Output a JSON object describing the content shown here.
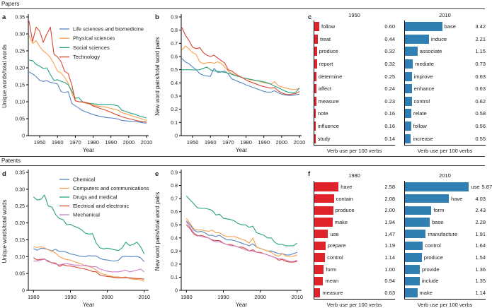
{
  "sections": {
    "papers": {
      "label": "Papers"
    },
    "patents": {
      "label": "Patents"
    }
  },
  "panel_letters": {
    "a": "a",
    "b": "b",
    "c": "c",
    "d": "d",
    "e": "e",
    "f": "f"
  },
  "chart_data": [
    {
      "id": "a",
      "row": "top",
      "type": "line",
      "panel": "a",
      "section": "Papers",
      "xlabel": "Year",
      "ylabel": "Unique words/total words",
      "xlim": [
        1943.6,
        2011.2
      ],
      "ylim": [
        0,
        0.35
      ],
      "xticks": [
        1950,
        1960,
        1970,
        1980,
        1990,
        2000,
        2010
      ],
      "yticks": [
        "0",
        "0.05",
        "0.10",
        "0.15",
        "0.20",
        "0.25",
        "0.30",
        "0.35"
      ],
      "legend": true,
      "grid": false,
      "x_start": 1944,
      "x_step": 2,
      "series": [
        {
          "name": "Life sciences and biomedicine",
          "color": "#5585c2",
          "values": [
            0.188,
            0.182,
            0.174,
            0.163,
            0.16,
            0.162,
            0.157,
            0.155,
            0.152,
            0.13,
            0.127,
            0.13,
            0.095,
            0.088,
            0.081,
            0.074,
            0.07,
            0.066,
            0.062,
            0.059,
            0.057,
            0.055,
            0.053,
            0.052,
            0.051,
            0.049,
            0.045,
            0.044,
            0.043,
            0.042,
            0.041,
            0.04,
            0.038,
            0.037
          ]
        },
        {
          "name": "Physical sciences",
          "color": "#f6a04d",
          "values": [
            0.295,
            0.272,
            0.28,
            0.262,
            0.25,
            0.242,
            0.23,
            0.212,
            0.19,
            0.185,
            0.172,
            0.155,
            0.125,
            0.103,
            0.1,
            0.098,
            0.095,
            0.093,
            0.09,
            0.088,
            0.086,
            0.085,
            0.083,
            0.08,
            0.078,
            0.075,
            0.068,
            0.065,
            0.062,
            0.058,
            0.055,
            0.052,
            0.048,
            0.045
          ]
        },
        {
          "name": "Social sciences",
          "color": "#27a383",
          "values": [
            0.223,
            0.221,
            0.21,
            0.205,
            0.198,
            0.2,
            0.18,
            0.163,
            0.165,
            0.16,
            0.157,
            0.15,
            0.132,
            0.11,
            0.112,
            0.1,
            0.097,
            0.095,
            0.094,
            0.093,
            0.092,
            0.092,
            0.092,
            0.092,
            0.09,
            0.088,
            0.075,
            0.072,
            0.068,
            0.065,
            0.062,
            0.058,
            0.055,
            0.052
          ]
        },
        {
          "name": "Technology",
          "color": "#d8452f",
          "values": [
            0.338,
            0.278,
            0.32,
            0.308,
            0.275,
            0.3,
            0.32,
            0.24,
            0.232,
            0.218,
            0.19,
            0.183,
            0.15,
            0.103,
            0.1,
            0.1,
            0.098,
            0.095,
            0.087,
            0.084,
            0.08,
            0.077,
            0.073,
            0.069,
            0.064,
            0.06,
            0.056,
            0.053,
            0.05,
            0.048,
            0.045,
            0.043,
            0.041,
            0.04
          ]
        }
      ]
    },
    {
      "id": "b",
      "row": "top",
      "type": "line",
      "panel": "b",
      "section": "Papers",
      "xlabel": "Year",
      "ylabel": "New word pairs/total word pairs",
      "xlim": [
        1943.6,
        2011.2
      ],
      "ylim": [
        0,
        0.9
      ],
      "xticks": [
        1950,
        1960,
        1970,
        1980,
        1990,
        2000,
        2010
      ],
      "yticks": [
        "0",
        "0.1",
        "0.2",
        "0.3",
        "0.4",
        "0.5",
        "0.6",
        "0.7",
        "0.8",
        "0.9"
      ],
      "legend": false,
      "grid": false,
      "x_start": 1944,
      "x_step": 2,
      "series": [
        {
          "name": "Life sciences and biomedicine",
          "color": "#5585c2",
          "values": [
            0.585,
            0.558,
            0.545,
            0.52,
            0.5,
            0.47,
            0.458,
            0.452,
            0.45,
            0.51,
            0.48,
            0.482,
            0.49,
            0.468,
            0.43,
            0.42,
            0.408,
            0.398,
            0.385,
            0.375,
            0.365,
            0.355,
            0.345,
            0.336,
            0.33,
            0.33,
            0.34,
            0.325,
            0.315,
            0.308,
            0.305,
            0.305,
            0.31,
            0.315
          ]
        },
        {
          "name": "Physical sciences",
          "color": "#f6a04d",
          "values": [
            0.65,
            0.68,
            0.658,
            0.63,
            0.615,
            0.56,
            0.545,
            0.552,
            0.555,
            0.548,
            0.56,
            0.548,
            0.52,
            0.49,
            0.47,
            0.46,
            0.45,
            0.44,
            0.432,
            0.425,
            0.42,
            0.415,
            0.41,
            0.402,
            0.396,
            0.39,
            0.41,
            0.38,
            0.37,
            0.362,
            0.355,
            0.35,
            0.35,
            0.36
          ]
        },
        {
          "name": "Social sciences",
          "color": "#27a383",
          "values": [
            0.5,
            0.5,
            0.5,
            0.499,
            0.498,
            0.5,
            0.51,
            0.52,
            0.5,
            0.49,
            0.488,
            0.484,
            0.48,
            0.474,
            0.465,
            0.455,
            0.448,
            0.44,
            0.434,
            0.428,
            0.423,
            0.418,
            0.413,
            0.408,
            0.4,
            0.39,
            0.375,
            0.365,
            0.35,
            0.338,
            0.328,
            0.323,
            0.33,
            0.36
          ]
        },
        {
          "name": "Technology",
          "color": "#d8452f",
          "values": [
            0.82,
            0.76,
            0.72,
            0.67,
            0.66,
            0.668,
            0.63,
            0.61,
            0.6,
            0.61,
            0.59,
            0.57,
            0.55,
            0.5,
            0.49,
            0.47,
            0.452,
            0.44,
            0.422,
            0.41,
            0.4,
            0.39,
            0.38,
            0.372,
            0.366,
            0.36,
            0.365,
            0.34,
            0.325,
            0.315,
            0.31,
            0.315,
            0.32,
            0.335
          ]
        }
      ]
    },
    {
      "id": "c1950",
      "row": "top",
      "type": "bar",
      "panel": "c",
      "section": "Papers",
      "title": "1950",
      "xlabel": "Verb use per 100 verbs",
      "color": "#e0222a",
      "xmax": 9.8,
      "categories": [
        "follow",
        "treat",
        "produce",
        "report",
        "determine",
        "affect",
        "measure",
        "note",
        "influence",
        "study"
      ],
      "values": [
        "0.60",
        "0.44",
        "0.32",
        "0.32",
        "0.25",
        "0.24",
        "0.23",
        "0.16",
        "0.16",
        "0.14"
      ]
    },
    {
      "id": "c2010",
      "row": "top",
      "type": "bar",
      "panel": "c",
      "section": "Papers",
      "title": "2010",
      "xlabel": "Verb use per 100 verbs",
      "color": "#2f7fb2",
      "xmax": 7.4,
      "categories": [
        "base",
        "induce",
        "associate",
        "mediate",
        "improve",
        "enhance",
        "control",
        "relate",
        "follow",
        "increase"
      ],
      "values": [
        "3.42",
        "2.21",
        "1.15",
        "0.73",
        "0.63",
        "0.63",
        "0.62",
        "0.58",
        "0.56",
        "0.55"
      ]
    },
    {
      "id": "d",
      "row": "bot",
      "type": "line",
      "panel": "d",
      "section": "Patents",
      "xlabel": "Year",
      "ylabel": "Unique words/total words",
      "xlim": [
        1978.6,
        2011.2
      ],
      "ylim": [
        0,
        0.35
      ],
      "xticks": [
        1980,
        1990,
        2000,
        2010
      ],
      "yticks": [
        "0",
        "0.05",
        "0.10",
        "0.15",
        "0.20",
        "0.25",
        "0.30",
        "0.35"
      ],
      "legend": true,
      "grid": false,
      "x_start": 1980,
      "x_step": 1,
      "series": [
        {
          "name": "Chemical",
          "color": "#5585c2",
          "values": [
            0.124,
            0.119,
            0.125,
            0.124,
            0.121,
            0.117,
            0.122,
            0.115,
            0.116,
            0.113,
            0.108,
            0.106,
            0.103,
            0.101,
            0.1,
            0.103,
            0.102,
            0.102,
            0.095,
            0.091,
            0.09,
            0.088,
            0.087,
            0.089,
            0.1,
            0.101,
            0.1,
            0.1,
            0.101,
            0.097,
            0.085
          ]
        },
        {
          "name": "Computers and communications",
          "color": "#f6a04d",
          "values": [
            0.13,
            0.127,
            0.13,
            0.126,
            0.12,
            0.116,
            0.11,
            0.1,
            0.095,
            0.091,
            0.09,
            0.085,
            0.082,
            0.078,
            0.073,
            0.071,
            0.067,
            0.06,
            0.052,
            0.048,
            0.045,
            0.042,
            0.04,
            0.04,
            0.038,
            0.04,
            0.035,
            0.033,
            0.033,
            0.031,
            0.027
          ]
        },
        {
          "name": "Drugs and medical",
          "color": "#27a383",
          "values": [
            0.277,
            0.268,
            0.27,
            0.283,
            0.25,
            0.247,
            0.225,
            0.213,
            0.21,
            0.195,
            0.196,
            0.19,
            0.186,
            0.18,
            0.17,
            0.167,
            0.168,
            0.14,
            0.126,
            0.123,
            0.125,
            0.123,
            0.12,
            0.118,
            0.126,
            0.143,
            0.133,
            0.136,
            0.143,
            0.13,
            0.108
          ]
        },
        {
          "name": "Electrical and electronic",
          "color": "#d8452f",
          "values": [
            0.097,
            0.09,
            0.092,
            0.093,
            0.085,
            0.082,
            0.081,
            0.071,
            0.076,
            0.073,
            0.072,
            0.07,
            0.068,
            0.065,
            0.063,
            0.06,
            0.056,
            0.055,
            0.045,
            0.043,
            0.041,
            0.04,
            0.038,
            0.037,
            0.037,
            0.038,
            0.037,
            0.036,
            0.035,
            0.035,
            0.033
          ]
        },
        {
          "name": "Mechanical",
          "color": "#cc7fc6",
          "values": [
            0.087,
            0.087,
            0.09,
            0.092,
            0.088,
            0.081,
            0.078,
            0.075,
            0.078,
            0.08,
            0.077,
            0.075,
            0.075,
            0.072,
            0.075,
            0.072,
            0.07,
            0.07,
            0.063,
            0.06,
            0.057,
            0.055,
            0.055,
            0.055,
            0.057,
            0.06,
            0.055,
            0.057,
            0.06,
            0.063,
            0.055
          ]
        }
      ]
    },
    {
      "id": "e",
      "row": "bot",
      "type": "line",
      "panel": "e",
      "section": "Patents",
      "xlabel": "Year",
      "ylabel": "New word pairs/total word pairs",
      "xlim": [
        1978.6,
        2011.2
      ],
      "ylim": [
        0,
        0.9
      ],
      "xticks": [
        1980,
        1990,
        2000,
        2010
      ],
      "yticks": [
        "0",
        "0.1",
        "0.2",
        "0.3",
        "0.4",
        "0.5",
        "0.6",
        "0.7",
        "0.8",
        "0.9"
      ],
      "legend": false,
      "grid": false,
      "x_start": 1980,
      "x_step": 1,
      "series": [
        {
          "name": "Chemical",
          "color": "#5585c2",
          "values": [
            0.53,
            0.5,
            0.46,
            0.445,
            0.45,
            0.44,
            0.42,
            0.42,
            0.41,
            0.42,
            0.4,
            0.385,
            0.385,
            0.38,
            0.37,
            0.36,
            0.35,
            0.34,
            0.355,
            0.33,
            0.32,
            0.31,
            0.3,
            0.3,
            0.29,
            0.28,
            0.28,
            0.27,
            0.27,
            0.28,
            0.29
          ]
        },
        {
          "name": "Computers and communications",
          "color": "#f6a04d",
          "values": [
            0.55,
            0.51,
            0.47,
            0.46,
            0.46,
            0.455,
            0.45,
            0.46,
            0.44,
            0.44,
            0.42,
            0.41,
            0.41,
            0.41,
            0.4,
            0.39,
            0.38,
            0.36,
            0.4,
            0.33,
            0.32,
            0.31,
            0.3,
            0.29,
            0.27,
            0.26,
            0.28,
            0.26,
            0.26,
            0.26,
            0.27
          ]
        },
        {
          "name": "Drugs and medical",
          "color": "#27a383",
          "values": [
            0.72,
            0.69,
            0.66,
            0.63,
            0.625,
            0.625,
            0.62,
            0.61,
            0.575,
            0.58,
            0.55,
            0.545,
            0.54,
            0.53,
            0.51,
            0.5,
            0.5,
            0.48,
            0.49,
            0.44,
            0.43,
            0.42,
            0.4,
            0.4,
            0.365,
            0.35,
            0.35,
            0.34,
            0.34,
            0.34,
            0.36
          ]
        },
        {
          "name": "Electrical and electronic",
          "color": "#d8452f",
          "values": [
            0.5,
            0.47,
            0.43,
            0.415,
            0.42,
            0.41,
            0.4,
            0.385,
            0.38,
            0.38,
            0.36,
            0.35,
            0.35,
            0.34,
            0.33,
            0.33,
            0.32,
            0.3,
            0.31,
            0.29,
            0.29,
            0.28,
            0.27,
            0.26,
            0.25,
            0.23,
            0.235,
            0.22,
            0.215,
            0.215,
            0.22
          ]
        },
        {
          "name": "Mechanical",
          "color": "#cc7fc6",
          "values": [
            0.525,
            0.48,
            0.44,
            0.42,
            0.41,
            0.405,
            0.4,
            0.38,
            0.37,
            0.37,
            0.36,
            0.35,
            0.34,
            0.34,
            0.33,
            0.32,
            0.31,
            0.3,
            0.3,
            0.29,
            0.285,
            0.28,
            0.27,
            0.26,
            0.25,
            0.24,
            0.24,
            0.23,
            0.22,
            0.22,
            0.23
          ]
        }
      ]
    },
    {
      "id": "f1980",
      "row": "bot",
      "type": "bar",
      "panel": "f",
      "section": "Patents",
      "title": "1980",
      "xlabel": "Verb use per 100 verbs",
      "color": "#e0222a",
      "xmax": 8.6,
      "categories": [
        "have",
        "contain",
        "produce",
        "make",
        "use",
        "prepare",
        "control",
        "form",
        "mean",
        "measure"
      ],
      "values": [
        "2.58",
        "2.08",
        "2.00",
        "1.94",
        "1.47",
        "1.19",
        "1.14",
        "1.00",
        "0.94",
        "0.63"
      ]
    },
    {
      "id": "f2010",
      "row": "bot",
      "type": "bar",
      "panel": "f",
      "section": "Patents",
      "title": "2010",
      "xlabel": "Verb use per 100 verbs",
      "color": "#2f7fb2",
      "xmax": 7.4,
      "categories": [
        "use",
        "have",
        "form",
        "base",
        "manufacture",
        "control",
        "produce",
        "provide",
        "include",
        "make"
      ],
      "values": [
        "5.87",
        "4.03",
        "2.43",
        "2.28",
        "1.91",
        "1.64",
        "1.54",
        "1.36",
        "1.35",
        "1.14"
      ]
    }
  ]
}
